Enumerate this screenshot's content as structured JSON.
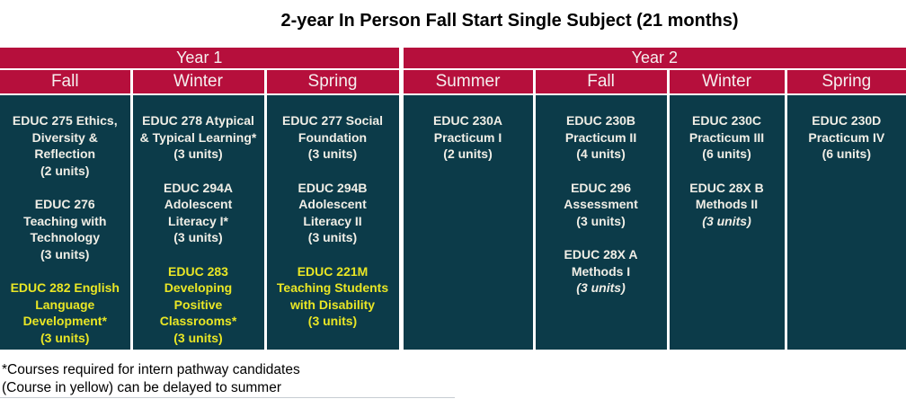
{
  "title": "2-year In Person Fall Start Single Subject (21 months)",
  "colors": {
    "header_bg": "#B60F3C",
    "body_bg": "#0C3B49",
    "header_text": "#F5EFEF",
    "body_text": "#F0EEE6",
    "highlight_text": "#E9E625"
  },
  "table": {
    "year_headers": [
      {
        "label": "Year 1",
        "colspan": 3
      },
      {
        "label": "Year 2",
        "colspan": 4
      }
    ],
    "columns": [
      {
        "year": "Year 1",
        "season": "Fall",
        "courses": [
          {
            "lines": [
              "EDUC 275 Ethics,",
              "Diversity &",
              "Reflection",
              "(2 units)"
            ],
            "highlight": false,
            "units_italic": false
          },
          {
            "lines": [
              "EDUC 276",
              "Teaching with",
              "Technology",
              "(3 units)"
            ],
            "highlight": false,
            "units_italic": false
          },
          {
            "lines": [
              "EDUC 282 English",
              "Language",
              "Development*",
              "(3 units)"
            ],
            "highlight": true,
            "units_italic": false
          }
        ]
      },
      {
        "year": "Year 1",
        "season": "Winter",
        "courses": [
          {
            "lines": [
              "EDUC 278 Atypical",
              "& Typical Learning*",
              "(3 units)"
            ],
            "highlight": false,
            "units_italic": false
          },
          {
            "lines": [
              "EDUC 294A",
              "Adolescent",
              "Literacy I*",
              "(3 units)"
            ],
            "highlight": false,
            "units_italic": false
          },
          {
            "lines": [
              "EDUC 283",
              "Developing",
              "Positive",
              "Classrooms*",
              "(3 units)"
            ],
            "highlight": true,
            "units_italic": false
          }
        ]
      },
      {
        "year": "Year 1",
        "season": "Spring",
        "courses": [
          {
            "lines": [
              "EDUC 277 Social",
              "Foundation",
              "(3 units)"
            ],
            "highlight": false,
            "units_italic": false
          },
          {
            "lines": [
              "EDUC 294B",
              "Adolescent",
              "Literacy II",
              "(3 units)"
            ],
            "highlight": false,
            "units_italic": false
          },
          {
            "lines": [
              "EDUC 221M",
              "Teaching Students",
              "with Disability",
              "(3 units)"
            ],
            "highlight": true,
            "units_italic": false
          }
        ]
      },
      {
        "year": "Year 2",
        "season": "Summer",
        "courses": [
          {
            "lines": [
              "EDUC 230A",
              "Practicum I",
              "(2 units)"
            ],
            "highlight": false,
            "units_italic": false
          }
        ]
      },
      {
        "year": "Year 2",
        "season": "Fall",
        "courses": [
          {
            "lines": [
              "EDUC 230B",
              "Practicum II",
              "(4 units)"
            ],
            "highlight": false,
            "units_italic": false
          },
          {
            "lines": [
              "EDUC 296",
              "Assessment",
              "(3 units)"
            ],
            "highlight": false,
            "units_italic": false
          },
          {
            "lines": [
              "EDUC 28X A",
              "Methods I",
              "(3 units)"
            ],
            "highlight": false,
            "units_italic": true
          }
        ]
      },
      {
        "year": "Year 2",
        "season": "Winter",
        "courses": [
          {
            "lines": [
              "EDUC 230C",
              "Practicum III",
              "(6 units)"
            ],
            "highlight": false,
            "units_italic": false
          },
          {
            "lines": [
              "EDUC 28X B",
              "Methods II",
              "(3 units)"
            ],
            "highlight": false,
            "units_italic": true
          }
        ]
      },
      {
        "year": "Year 2",
        "season": "Spring",
        "courses": [
          {
            "lines": [
              "EDUC 230D",
              "Practicum IV",
              "(6 units)"
            ],
            "highlight": false,
            "units_italic": false
          }
        ]
      }
    ]
  },
  "footnotes": [
    "*Courses required for intern pathway candidates",
    "(Course in yellow) can be delayed to summer"
  ]
}
